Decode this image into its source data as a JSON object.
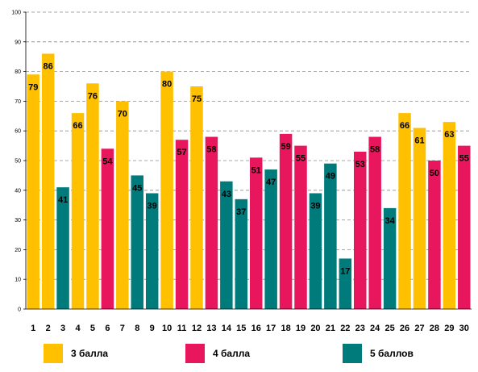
{
  "chart_data": {
    "type": "bar",
    "categories": [
      "1",
      "2",
      "3",
      "4",
      "5",
      "6",
      "7",
      "8",
      "9",
      "10",
      "11",
      "12",
      "13",
      "14",
      "15",
      "16",
      "17",
      "18",
      "19",
      "20",
      "21",
      "22",
      "23",
      "24",
      "25",
      "26",
      "27",
      "28",
      "29",
      "30"
    ],
    "values": [
      79,
      86,
      41,
      66,
      76,
      54,
      70,
      45,
      39,
      80,
      57,
      75,
      58,
      43,
      37,
      51,
      47,
      59,
      55,
      39,
      49,
      17,
      53,
      58,
      34,
      66,
      61,
      50,
      63,
      55
    ],
    "groups": [
      "3 балла",
      "3 балла",
      "5 баллов",
      "3 балла",
      "3 балла",
      "4 балла",
      "3 балла",
      "5 баллов",
      "5 баллов",
      "3 балла",
      "4 балла",
      "3 балла",
      "4 балла",
      "5 баллов",
      "5 баллов",
      "4 балла",
      "5 баллов",
      "4 балла",
      "4 балла",
      "5 баллов",
      "5 баллов",
      "5 баллов",
      "4 балла",
      "4 балла",
      "5 баллов",
      "3 балла",
      "3 балла",
      "4 балла",
      "3 балла",
      "4 балла"
    ],
    "yticks": [
      "0",
      "10",
      "20",
      "30",
      "40",
      "50",
      "60",
      "70",
      "80",
      "90",
      "100"
    ],
    "ylim": [
      0,
      100
    ],
    "grid": true,
    "legend": {
      "placement": "bottom",
      "items": [
        {
          "name": "3 балла",
          "color": "#FFC000"
        },
        {
          "name": "4 балла",
          "color": "#E8175D"
        },
        {
          "name": "5 баллов",
          "color": "#007B7B"
        }
      ]
    }
  }
}
